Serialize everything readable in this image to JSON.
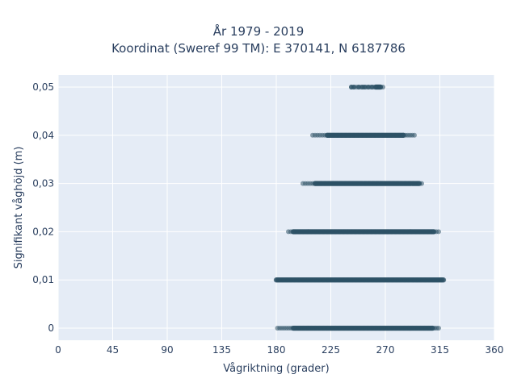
{
  "chart_data": {
    "type": "scatter",
    "title": [
      "År 1979 - 2019",
      "Koordinat (Sweref 99 TM): E 370141, N 6187786"
    ],
    "xlabel": "Vågriktning (grader)",
    "ylabel": "Signifikant våghöjd (m)",
    "xlim": [
      0,
      360
    ],
    "ylim": [
      -0.0025,
      0.0525
    ],
    "xticks": [
      0,
      45,
      90,
      135,
      180,
      225,
      270,
      315,
      360
    ],
    "xtick_labels": [
      "0",
      "45",
      "90",
      "135",
      "180",
      "225",
      "270",
      "315",
      "360"
    ],
    "yticks": [
      0,
      0.01,
      0.02,
      0.03,
      0.04,
      0.05
    ],
    "ytick_labels": [
      "0",
      "0,01",
      "0,02",
      "0,03",
      "0,04",
      "0,05"
    ],
    "grid": true,
    "marker_color": "#2e5266",
    "plot_background": "#e5ecf6",
    "bands": [
      {
        "y": 0.0,
        "x_min": 181,
        "x_max": 314,
        "dense_min": 194,
        "dense_max": 309
      },
      {
        "y": 0.01,
        "x_min": 180,
        "x_max": 318,
        "dense_min": 180,
        "dense_max": 318
      },
      {
        "y": 0.02,
        "x_min": 190,
        "x_max": 314,
        "dense_min": 194,
        "dense_max": 310
      },
      {
        "y": 0.03,
        "x_min": 202,
        "x_max": 300,
        "dense_min": 212,
        "dense_max": 298
      },
      {
        "y": 0.04,
        "x_min": 210,
        "x_max": 294,
        "dense_min": 222,
        "dense_max": 285
      },
      {
        "y": 0.05,
        "x_min": 242,
        "x_max": 268,
        "dense_min": 262,
        "dense_max": 266
      }
    ],
    "sparse_points": [
      {
        "y": 0.05,
        "x": [
          242,
          244,
          248,
          251,
          253,
          256,
          259
        ]
      }
    ]
  }
}
